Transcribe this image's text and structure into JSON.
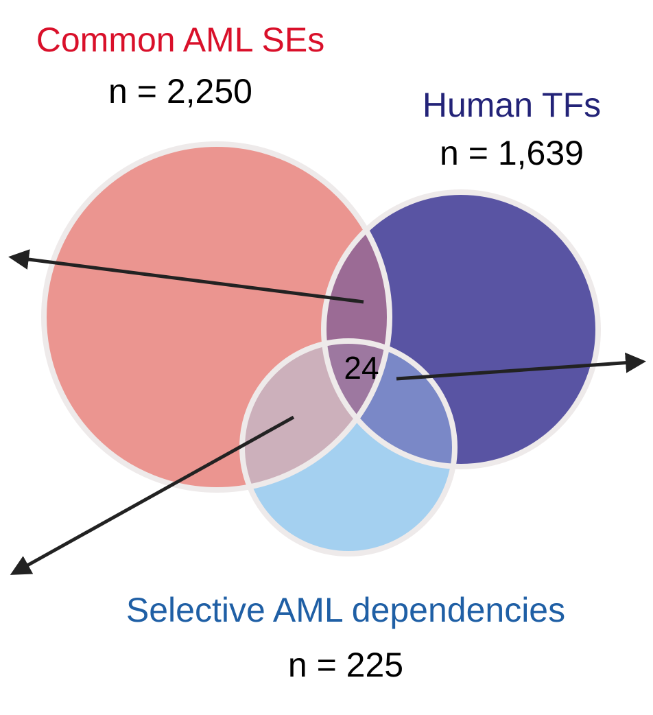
{
  "sets": [
    {
      "label": "Common AML SEs",
      "count": "n = 2,250"
    },
    {
      "label": "Human TFs",
      "count": "n = 1,639"
    },
    {
      "label": "Selective AML dependencies",
      "count": "n = 225"
    }
  ],
  "intersection": {
    "label": 24
  }
}
